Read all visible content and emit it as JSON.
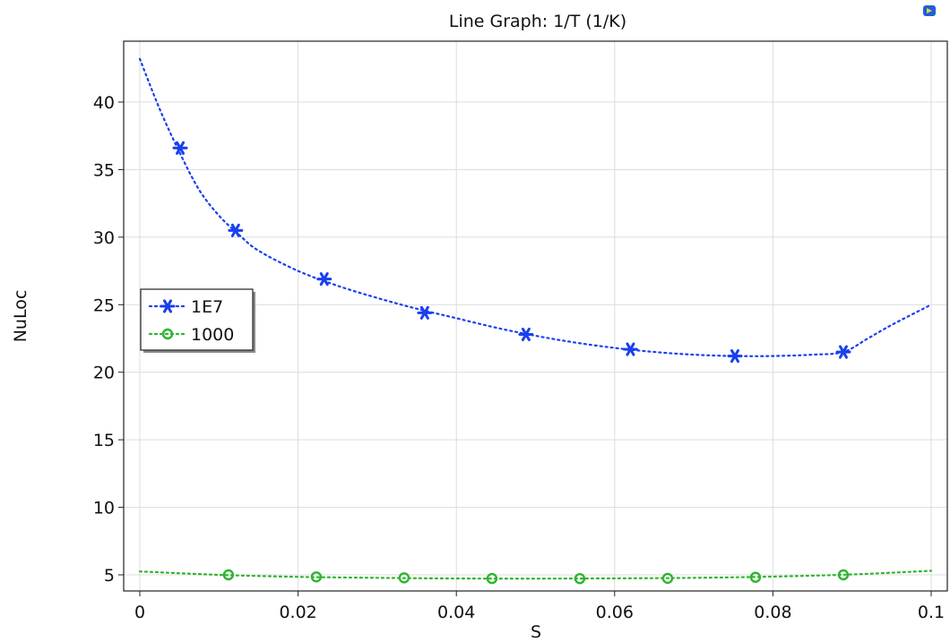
{
  "app_icon": {
    "name": "comsol-plot-icon",
    "colors": {
      "primary": "#1f5fd6",
      "accent": "#f2d23c"
    }
  },
  "chart_data": {
    "type": "line",
    "title": "Line Graph: 1/T (1/K)",
    "xlabel": "S",
    "ylabel": "NuLoc",
    "xlim": [
      0,
      0.1
    ],
    "ylim": [
      3.5,
      44.5
    ],
    "x_ticks": [
      0,
      0.02,
      0.04,
      0.06,
      0.08,
      0.1
    ],
    "x_tick_labels": [
      "0",
      "0.02",
      "0.04",
      "0.06",
      "0.08",
      "0.1"
    ],
    "y_ticks": [
      5,
      10,
      15,
      20,
      25,
      30,
      35,
      40
    ],
    "y_tick_labels": [
      "5",
      "10",
      "15",
      "20",
      "25",
      "30",
      "35",
      "40"
    ],
    "grid": true,
    "legend_position": "left-middle",
    "series": [
      {
        "name": "1E7",
        "color": "#1a3ff0",
        "line_style": "dotted",
        "marker": "asterisk",
        "curve": {
          "x": [
            0,
            0.0025,
            0.005,
            0.0075,
            0.01,
            0.0125,
            0.015,
            0.02,
            0.025,
            0.03,
            0.035,
            0.04,
            0.045,
            0.05,
            0.055,
            0.06,
            0.065,
            0.07,
            0.075,
            0.08,
            0.085,
            0.0889,
            0.092,
            0.095,
            0.1
          ],
          "y": [
            43.2,
            39.5,
            36.3,
            33.5,
            31.6,
            30.2,
            29.0,
            27.5,
            26.4,
            25.5,
            24.7,
            24.0,
            23.3,
            22.7,
            22.2,
            21.8,
            21.5,
            21.3,
            21.2,
            21.2,
            21.3,
            21.5,
            22.5,
            23.5,
            25.0
          ]
        },
        "markers": {
          "x": [
            0.0051,
            0.0121,
            0.0233,
            0.036,
            0.0488,
            0.062,
            0.0752,
            0.0889
          ],
          "y": [
            36.6,
            30.5,
            26.9,
            24.4,
            22.8,
            21.7,
            21.2,
            21.5
          ]
        }
      },
      {
        "name": "1000",
        "color": "#2db52d",
        "line_style": "dotted",
        "marker": "circle",
        "curve": {
          "x": [
            0,
            0.01,
            0.02,
            0.03,
            0.04,
            0.05,
            0.06,
            0.07,
            0.08,
            0.09,
            0.1
          ],
          "y": [
            5.25,
            5.0,
            4.85,
            4.78,
            4.73,
            4.72,
            4.74,
            4.78,
            4.87,
            5.03,
            5.3
          ]
        },
        "markers": {
          "x": [
            0.0112,
            0.0223,
            0.0334,
            0.0445,
            0.0556,
            0.0667,
            0.0778,
            0.0889
          ],
          "y": [
            5.0,
            4.85,
            4.78,
            4.73,
            4.72,
            4.74,
            4.82,
            5.0
          ]
        }
      }
    ]
  }
}
